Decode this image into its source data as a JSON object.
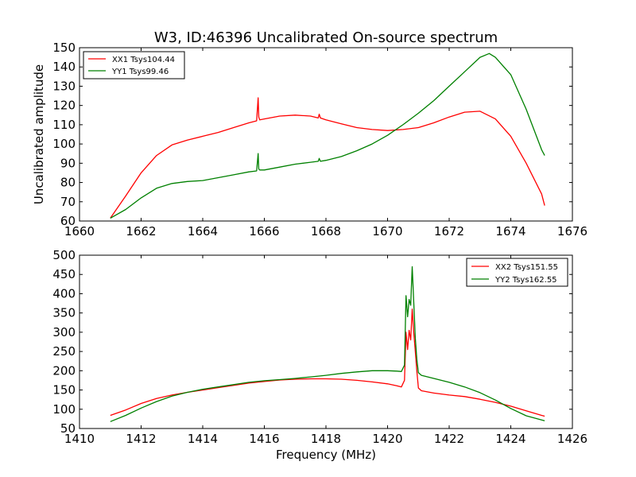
{
  "chart_data": [
    {
      "type": "line",
      "title": "W3, ID:46396 Uncalibrated On-source spectrum",
      "xlabel": "",
      "ylabel": "Uncalibrated amplitude",
      "xlim": [
        1660,
        1676
      ],
      "ylim": [
        60,
        150
      ],
      "xticks": [
        "1660",
        "1662",
        "1664",
        "1666",
        "1668",
        "1670",
        "1672",
        "1674",
        "1676"
      ],
      "yticks": [
        "60",
        "70",
        "80",
        "90",
        "100",
        "110",
        "120",
        "130",
        "140",
        "150"
      ],
      "legend_position": "top-left",
      "series": [
        {
          "name": "XX1 Tsys104.44",
          "color": "#ff0000",
          "x": [
            1661.0,
            1661.5,
            1662.0,
            1662.5,
            1663.0,
            1663.5,
            1664.0,
            1664.5,
            1665.0,
            1665.5,
            1665.75,
            1665.8,
            1665.82,
            1665.85,
            1666.0,
            1666.5,
            1667.0,
            1667.5,
            1667.75,
            1667.78,
            1667.82,
            1668.0,
            1668.5,
            1669.0,
            1669.5,
            1670.0,
            1670.5,
            1671.0,
            1671.5,
            1672.0,
            1672.5,
            1673.0,
            1673.5,
            1674.0,
            1674.5,
            1675.0,
            1675.1
          ],
          "y": [
            61.5,
            73,
            85,
            94,
            99.5,
            102,
            104,
            106,
            108.5,
            111,
            112,
            124,
            114,
            112.5,
            113,
            114.5,
            115,
            114.5,
            113.5,
            115.5,
            113.5,
            112.5,
            110.5,
            108.5,
            107.5,
            107,
            107.5,
            108.5,
            111,
            114,
            116.5,
            117,
            113,
            104,
            90,
            74,
            68
          ]
        },
        {
          "name": "YY1 Tsys99.46",
          "color": "#008000",
          "x": [
            1661.0,
            1661.5,
            1662.0,
            1662.5,
            1663.0,
            1663.5,
            1664.0,
            1664.5,
            1665.0,
            1665.5,
            1665.75,
            1665.8,
            1665.82,
            1665.85,
            1666.0,
            1666.5,
            1667.0,
            1667.5,
            1667.75,
            1667.78,
            1667.82,
            1668.0,
            1668.5,
            1669.0,
            1669.5,
            1670.0,
            1670.5,
            1671.0,
            1671.5,
            1672.0,
            1672.5,
            1673.0,
            1673.3,
            1673.5,
            1674.0,
            1674.5,
            1675.0,
            1675.1
          ],
          "y": [
            61.5,
            66,
            72,
            77,
            79.5,
            80.5,
            81,
            82.5,
            84,
            85.5,
            86,
            95,
            87,
            86.5,
            86.5,
            88,
            89.5,
            90.5,
            91,
            92.5,
            91,
            91.5,
            93.5,
            96.5,
            100,
            104.5,
            110,
            116,
            122.5,
            130,
            137.5,
            145,
            147,
            145,
            136,
            118,
            97,
            94
          ]
        }
      ]
    },
    {
      "type": "line",
      "title": "",
      "xlabel": "Frequency (MHz)",
      "ylabel": "",
      "xlim": [
        1410,
        1426
      ],
      "ylim": [
        50,
        500
      ],
      "xticks": [
        "1410",
        "1412",
        "1414",
        "1416",
        "1418",
        "1420",
        "1422",
        "1424",
        "1426"
      ],
      "yticks": [
        "50",
        "100",
        "150",
        "200",
        "250",
        "300",
        "350",
        "400",
        "450",
        "500"
      ],
      "legend_position": "top-right",
      "series": [
        {
          "name": "XX2 Tsys151.55",
          "color": "#ff0000",
          "x": [
            1411.0,
            1411.5,
            1412.0,
            1412.5,
            1413.0,
            1413.5,
            1414.0,
            1414.5,
            1415.0,
            1415.5,
            1416.0,
            1416.5,
            1417.0,
            1417.5,
            1418.0,
            1418.5,
            1419.0,
            1419.5,
            1420.0,
            1420.3,
            1420.45,
            1420.55,
            1420.6,
            1420.65,
            1420.7,
            1420.75,
            1420.8,
            1420.85,
            1420.9,
            1420.95,
            1421.0,
            1421.1,
            1421.5,
            1422.0,
            1422.5,
            1423.0,
            1423.5,
            1424.0,
            1424.5,
            1425.0,
            1425.1
          ],
          "y": [
            84,
            98,
            115,
            128,
            137,
            144,
            150,
            156,
            162,
            168,
            172,
            176,
            178,
            179,
            179,
            178,
            175,
            171,
            166,
            161,
            158,
            175,
            300,
            255,
            305,
            280,
            360,
            300,
            250,
            200,
            155,
            148,
            142,
            137,
            133,
            126,
            118,
            108,
            96,
            84,
            82
          ]
        },
        {
          "name": "YY2 Tsys162.55",
          "color": "#008000",
          "x": [
            1411.0,
            1411.5,
            1412.0,
            1412.5,
            1413.0,
            1413.5,
            1414.0,
            1414.5,
            1415.0,
            1415.5,
            1416.0,
            1416.5,
            1417.0,
            1417.5,
            1418.0,
            1418.5,
            1419.0,
            1419.5,
            1420.0,
            1420.3,
            1420.45,
            1420.55,
            1420.6,
            1420.65,
            1420.7,
            1420.75,
            1420.8,
            1420.85,
            1420.9,
            1420.95,
            1421.0,
            1421.1,
            1421.5,
            1422.0,
            1422.5,
            1423.0,
            1423.5,
            1424.0,
            1424.5,
            1425.0,
            1425.1
          ],
          "y": [
            68,
            84,
            103,
            120,
            134,
            144,
            152,
            158,
            164,
            170,
            174,
            177,
            180,
            184,
            188,
            193,
            197,
            200,
            200,
            199,
            198,
            215,
            395,
            340,
            385,
            370,
            470,
            380,
            285,
            230,
            195,
            188,
            180,
            170,
            158,
            143,
            124,
            102,
            83,
            72,
            70
          ]
        }
      ]
    }
  ]
}
